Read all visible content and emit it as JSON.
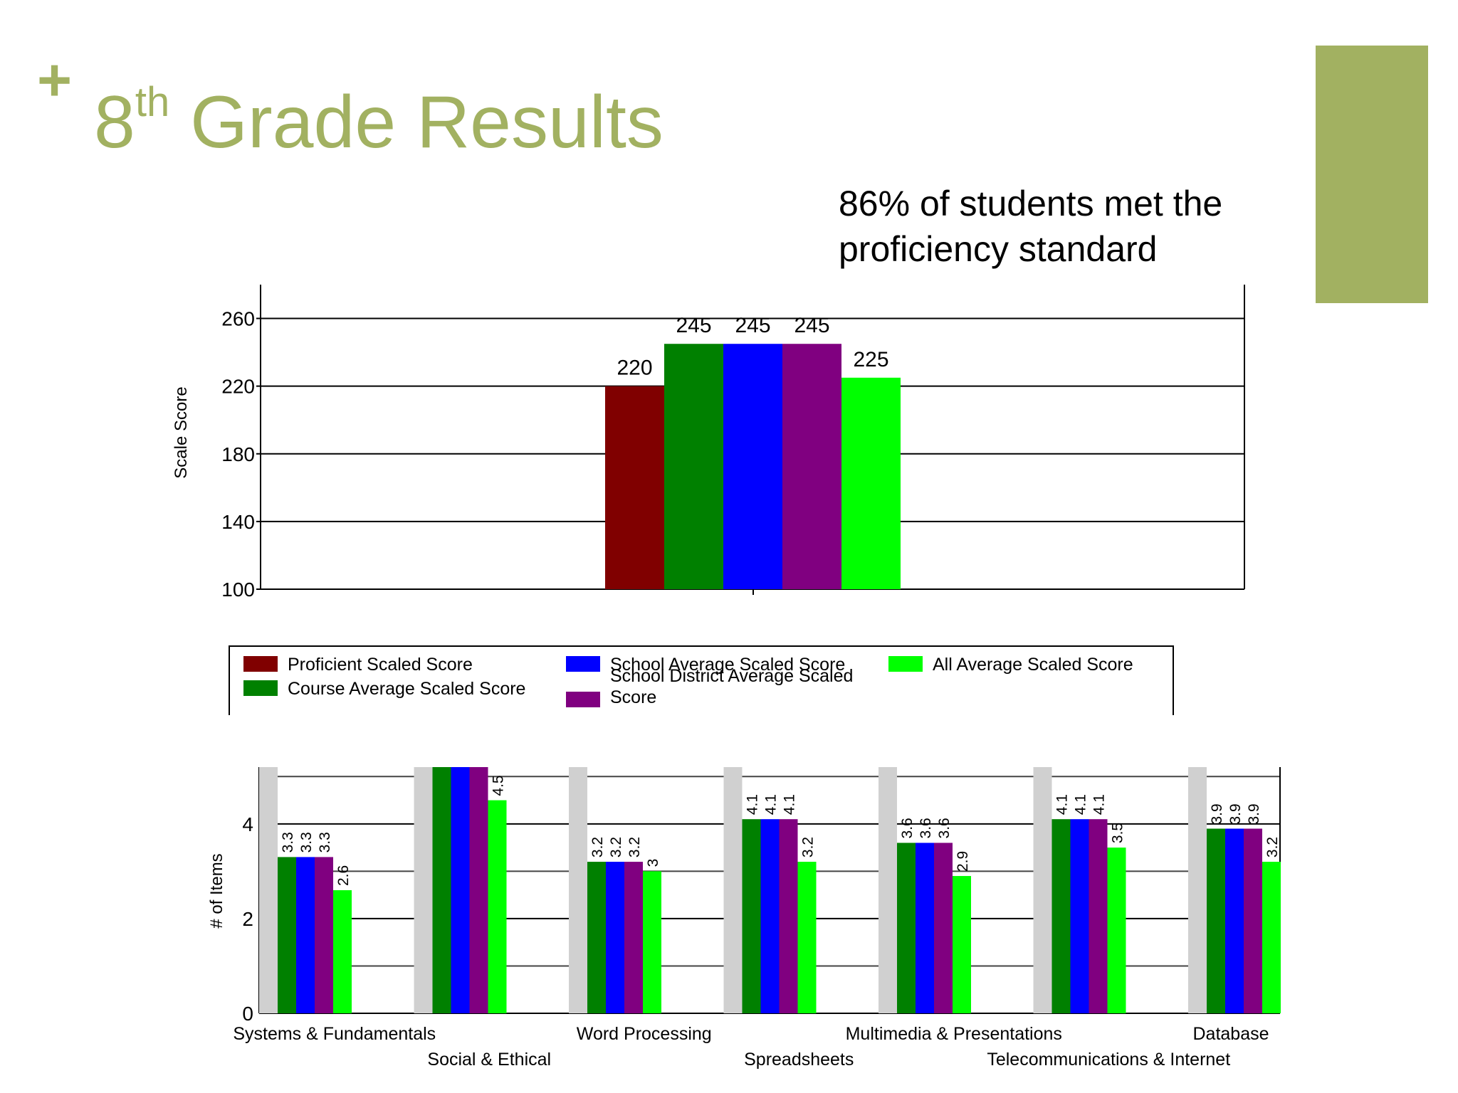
{
  "slide": {
    "title_main": "8",
    "title_sup": "th",
    "title_rest": "Grade Results",
    "note": "86% of students met the proficiency standard",
    "colors": {
      "accent": "#a2b161"
    }
  },
  "chart_data": [
    {
      "type": "bar",
      "ylabel": "Scale Score",
      "ylim": [
        100,
        280
      ],
      "yticks": [
        100,
        140,
        180,
        220,
        260
      ],
      "grid": true,
      "series": [
        {
          "name": "Proficient Scaled Score",
          "value": 220,
          "color": "#800000"
        },
        {
          "name": "Course Average Scaled Score",
          "value": 245,
          "color": "#008000"
        },
        {
          "name": "School Average Scaled Score",
          "value": 245,
          "color": "#0000ff"
        },
        {
          "name": "School District Average Scaled Score",
          "value": 245,
          "color": "#800080"
        },
        {
          "name": "All Average Scaled Score",
          "value": 225,
          "color": "#00ff00"
        }
      ],
      "legend_position": "bottom"
    },
    {
      "type": "bar",
      "ylabel": "# of Items",
      "ylim": [
        0,
        5.2
      ],
      "yticks": [
        0,
        2,
        4
      ],
      "grid": true,
      "categories": [
        "Systems & Fundamentals",
        "Social & Ethical",
        "Word Processing",
        "Spreadsheets",
        "Multimedia & Presentations",
        "Telecommunications & Internet",
        "Database"
      ],
      "series": [
        {
          "color": "#008000",
          "values": [
            3.3,
            5.2,
            3.2,
            4.1,
            3.6,
            4.1,
            3.9
          ],
          "labels": [
            "3.3",
            "",
            "3.2",
            "4.1",
            "3.6",
            "4.1",
            "3.9"
          ]
        },
        {
          "color": "#0000ff",
          "values": [
            3.3,
            5.2,
            3.2,
            4.1,
            3.6,
            4.1,
            3.9
          ],
          "labels": [
            "3.3",
            "",
            "3.2",
            "4.1",
            "3.6",
            "4.1",
            "3.9"
          ]
        },
        {
          "color": "#800080",
          "values": [
            3.3,
            5.2,
            3.2,
            4.1,
            3.6,
            4.1,
            3.9
          ],
          "labels": [
            "3.3",
            "",
            "3.2",
            "4.1",
            "3.6",
            "4.1",
            "3.9"
          ]
        },
        {
          "color": "#00ff00",
          "values": [
            2.6,
            4.5,
            3.0,
            3.2,
            2.9,
            3.5,
            3.2
          ],
          "labels": [
            "2.6",
            "4.5",
            "3",
            "3.2",
            "2.9",
            "3.5",
            "3.2"
          ]
        }
      ]
    }
  ]
}
